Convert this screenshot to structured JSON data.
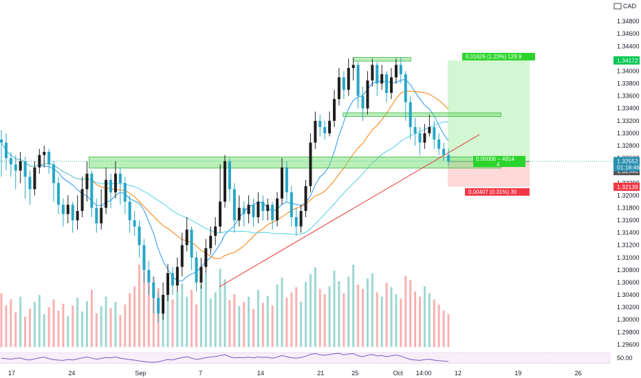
{
  "chart_data": {
    "type": "candlestick",
    "symbol_currency": "CAD",
    "ylim": [
      1.2956,
      1.351
    ],
    "y_ticks": [
      "1.34800",
      "1.34600",
      "1.34400",
      "1.34200",
      "1.34000",
      "1.33800",
      "1.33600",
      "1.33400",
      "1.33200",
      "1.33000",
      "1.32800",
      "1.32600",
      "1.32400",
      "1.32200",
      "1.32000",
      "1.31800",
      "1.31600",
      "1.31400",
      "1.31200",
      "1.31000",
      "1.30800",
      "1.30600",
      "1.30400",
      "1.30200",
      "1.30000",
      "1.29800",
      "1.29600"
    ],
    "y_tick_values": [
      1.348,
      1.346,
      1.344,
      1.342,
      1.34,
      1.338,
      1.336,
      1.334,
      1.332,
      1.33,
      1.328,
      1.326,
      1.324,
      1.322,
      1.32,
      1.318,
      1.316,
      1.314,
      1.312,
      1.31,
      1.308,
      1.306,
      1.304,
      1.302,
      1.3,
      1.298,
      1.296
    ],
    "x_labels": [
      "17",
      "24",
      "Sep",
      "7",
      "14",
      "21",
      "25",
      "Oct",
      "14:00",
      "12",
      "19",
      "26"
    ],
    "x_day_index": [
      0,
      7,
      15,
      22,
      29,
      36,
      40,
      45,
      48,
      52,
      59,
      66
    ],
    "price_tags": {
      "target": "1.34172",
      "current": "1.32552",
      "countdown": "01:18:46",
      "entry": "1.32546",
      "stop": "1.32139"
    },
    "price_tag_values": {
      "target": 1.34172,
      "current": 1.32552,
      "entry": 1.32546,
      "stop": 1.32139
    },
    "position": {
      "profit_label": "0.01626 (1.23%) 129.9",
      "center_label": "0.00006 − 4914",
      "center_sub": "4",
      "loss_label": "0.00407 (0.31%) 30"
    },
    "zones": [
      {
        "from": 1.3416,
        "to": 1.3422,
        "day_from": 37.8,
        "day_to": 44.5
      },
      {
        "from": 1.3327,
        "to": 1.3333,
        "day_from": 36.6,
        "day_to": 55.0
      },
      {
        "from": 1.3244,
        "to": 1.3262,
        "day_from": 7.0,
        "day_to": 55.0
      }
    ],
    "trendline": {
      "day": [
        22.2,
        52.5
      ],
      "price": [
        1.3053,
        1.3298
      ]
    },
    "candles": [
      [
        1.329,
        1.3285,
        1.3305,
        1.323
      ],
      [
        1.3285,
        1.326,
        1.33,
        1.324
      ],
      [
        1.326,
        1.325,
        1.327,
        1.323
      ],
      [
        1.325,
        1.324,
        1.3265,
        1.321
      ],
      [
        1.324,
        1.3255,
        1.327,
        1.322
      ],
      [
        1.3255,
        1.323,
        1.3262,
        1.3195
      ],
      [
        1.323,
        1.321,
        1.324,
        1.3185
      ],
      [
        1.321,
        1.3245,
        1.3255,
        1.32
      ],
      [
        1.3245,
        1.3265,
        1.3275,
        1.3235
      ],
      [
        1.3265,
        1.327,
        1.328,
        1.3245
      ],
      [
        1.327,
        1.325,
        1.3275,
        1.3235
      ],
      [
        1.325,
        1.322,
        1.3255,
        1.319
      ],
      [
        1.322,
        1.3185,
        1.323,
        1.317
      ],
      [
        1.3185,
        1.317,
        1.3195,
        1.315
      ],
      [
        1.317,
        1.3185,
        1.32,
        1.3155
      ],
      [
        1.3185,
        1.316,
        1.319,
        1.314
      ],
      [
        1.316,
        1.3175,
        1.32,
        1.3145
      ],
      [
        1.3175,
        1.321,
        1.323,
        1.3165
      ],
      [
        1.321,
        1.3235,
        1.3255,
        1.319
      ],
      [
        1.3235,
        1.318,
        1.324,
        1.3165
      ],
      [
        1.318,
        1.3155,
        1.3195,
        1.314
      ],
      [
        1.3155,
        1.318,
        1.321,
        1.3145
      ],
      [
        1.318,
        1.3225,
        1.3245,
        1.317
      ],
      [
        1.3225,
        1.3205,
        1.3235,
        1.318
      ],
      [
        1.3205,
        1.3235,
        1.3255,
        1.3195
      ],
      [
        1.3235,
        1.322,
        1.3245,
        1.3185
      ],
      [
        1.322,
        1.319,
        1.323,
        1.317
      ],
      [
        1.319,
        1.316,
        1.32,
        1.314
      ],
      [
        1.316,
        1.315,
        1.3175,
        1.3135
      ],
      [
        1.315,
        1.312,
        1.316,
        1.31
      ],
      [
        1.312,
        1.308,
        1.313,
        1.306
      ],
      [
        1.308,
        1.306,
        1.3095,
        1.304
      ],
      [
        1.306,
        1.3035,
        1.307,
        1.301
      ],
      [
        1.3035,
        1.301,
        1.3045,
        1.2995
      ],
      [
        1.301,
        1.304,
        1.306,
        1.3
      ],
      [
        1.304,
        1.3075,
        1.309,
        1.303
      ],
      [
        1.3075,
        1.3055,
        1.3085,
        1.304
      ],
      [
        1.3055,
        1.3085,
        1.31,
        1.3045
      ],
      [
        1.3085,
        1.312,
        1.314,
        1.307
      ],
      [
        1.312,
        1.3145,
        1.3165,
        1.311
      ],
      [
        1.3145,
        1.31,
        1.315,
        1.308
      ],
      [
        1.31,
        1.306,
        1.311,
        1.3045
      ],
      [
        1.306,
        1.3085,
        1.31,
        1.305
      ],
      [
        1.3085,
        1.3115,
        1.313,
        1.3075
      ],
      [
        1.3115,
        1.3135,
        1.315,
        1.3105
      ],
      [
        1.3135,
        1.315,
        1.3165,
        1.312
      ],
      [
        1.315,
        1.319,
        1.325,
        1.314
      ],
      [
        1.319,
        1.3255,
        1.3265,
        1.318
      ],
      [
        1.3255,
        1.321,
        1.326,
        1.319
      ],
      [
        1.321,
        1.316,
        1.322,
        1.314
      ],
      [
        1.316,
        1.318,
        1.32,
        1.315
      ],
      [
        1.318,
        1.317,
        1.319,
        1.315
      ],
      [
        1.317,
        1.3185,
        1.32,
        1.3155
      ],
      [
        1.3185,
        1.3165,
        1.3195,
        1.315
      ],
      [
        1.3165,
        1.319,
        1.3205,
        1.3155
      ],
      [
        1.319,
        1.3175,
        1.32,
        1.316
      ],
      [
        1.3175,
        1.3185,
        1.3195,
        1.316
      ],
      [
        1.3185,
        1.316,
        1.319,
        1.3145
      ],
      [
        1.316,
        1.3195,
        1.3205,
        1.315
      ],
      [
        1.3195,
        1.3245,
        1.326,
        1.3185
      ],
      [
        1.3245,
        1.3205,
        1.3255,
        1.319
      ],
      [
        1.3205,
        1.3165,
        1.3215,
        1.315
      ],
      [
        1.3165,
        1.315,
        1.318,
        1.3135
      ],
      [
        1.315,
        1.3175,
        1.3185,
        1.314
      ],
      [
        1.3175,
        1.3215,
        1.3225,
        1.3165
      ],
      [
        1.3215,
        1.3285,
        1.33,
        1.3205
      ],
      [
        1.3285,
        1.332,
        1.3335,
        1.3275
      ],
      [
        1.332,
        1.331,
        1.333,
        1.3295
      ],
      [
        1.331,
        1.33,
        1.332,
        1.329
      ],
      [
        1.33,
        1.332,
        1.3335,
        1.3295
      ],
      [
        1.332,
        1.3355,
        1.337,
        1.331
      ],
      [
        1.3355,
        1.339,
        1.3405,
        1.3345
      ],
      [
        1.339,
        1.337,
        1.34,
        1.3355
      ],
      [
        1.337,
        1.3405,
        1.342,
        1.336
      ],
      [
        1.3405,
        1.341,
        1.3422,
        1.3385
      ],
      [
        1.341,
        1.336,
        1.3415,
        1.334
      ],
      [
        1.336,
        1.334,
        1.3375,
        1.332
      ],
      [
        1.334,
        1.3385,
        1.34,
        1.333
      ],
      [
        1.3385,
        1.341,
        1.342,
        1.3375
      ],
      [
        1.341,
        1.338,
        1.3415,
        1.336
      ],
      [
        1.338,
        1.3395,
        1.341,
        1.337
      ],
      [
        1.3395,
        1.3365,
        1.34,
        1.335
      ],
      [
        1.3365,
        1.339,
        1.3405,
        1.3355
      ],
      [
        1.339,
        1.341,
        1.342,
        1.338
      ],
      [
        1.341,
        1.3395,
        1.3422,
        1.338
      ],
      [
        1.3395,
        1.335,
        1.34,
        1.332
      ],
      [
        1.335,
        1.331,
        1.336,
        1.329
      ],
      [
        1.331,
        1.33,
        1.3325,
        1.328
      ],
      [
        1.33,
        1.3285,
        1.331,
        1.3265
      ],
      [
        1.3285,
        1.33,
        1.3315,
        1.3275
      ],
      [
        1.33,
        1.331,
        1.333,
        1.3295
      ],
      [
        1.331,
        1.329,
        1.332,
        1.3275
      ],
      [
        1.329,
        1.3275,
        1.33,
        1.3265
      ],
      [
        1.3275,
        1.3265,
        1.3285,
        1.3255
      ],
      [
        1.3265,
        1.3255,
        1.3275,
        1.3248
      ]
    ],
    "volume": [
      62,
      48,
      55,
      40,
      58,
      35,
      44,
      52,
      60,
      38,
      46,
      55,
      42,
      50,
      36,
      48,
      57,
      41,
      53,
      66,
      39,
      47,
      58,
      45,
      52,
      37,
      49,
      62,
      70,
      95,
      88,
      74,
      81,
      68,
      60,
      77,
      55,
      64,
      73,
      58,
      66,
      49,
      71,
      85,
      56,
      63,
      90,
      78,
      54,
      61,
      47,
      52,
      58,
      44,
      66,
      51,
      59,
      48,
      72,
      80,
      57,
      63,
      69,
      52,
      75,
      84,
      92,
      67,
      61,
      70,
      88,
      76,
      62,
      81,
      95,
      72,
      67,
      79,
      85,
      63,
      58,
      74,
      69,
      61,
      56,
      82,
      77,
      64,
      58,
      70,
      62,
      55,
      49,
      42,
      38
    ],
    "rsi": {
      "levels_label": "50.00",
      "values": [
        52,
        50,
        48,
        51,
        53,
        47,
        45,
        49,
        54,
        56,
        50,
        46,
        44,
        43,
        47,
        45,
        49,
        53,
        57,
        52,
        48,
        51,
        55,
        53,
        57,
        52,
        49,
        46,
        44,
        41,
        38,
        36,
        35,
        37,
        42,
        47,
        45,
        50,
        55,
        58,
        52,
        47,
        50,
        54,
        57,
        59,
        63,
        66,
        58,
        53,
        55,
        54,
        56,
        53,
        57,
        55,
        56,
        52,
        57,
        63,
        58,
        54,
        52,
        55,
        60,
        68,
        71,
        66,
        64,
        67,
        70,
        72,
        66,
        69,
        71,
        62,
        58,
        64,
        67,
        61,
        63,
        58,
        62,
        65,
        61,
        53,
        47,
        45,
        43,
        46,
        48,
        44,
        42,
        40,
        39
      ]
    }
  }
}
